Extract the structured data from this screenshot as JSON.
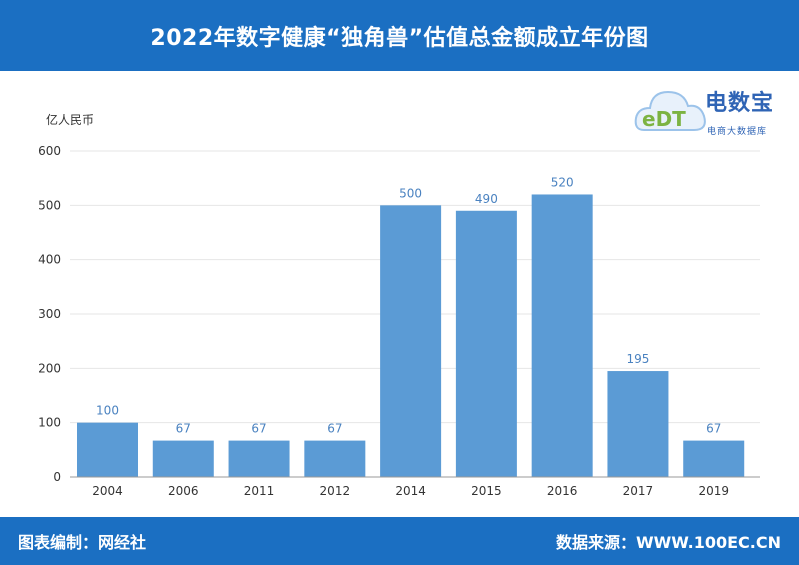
{
  "header": {
    "title": "2022年数字健康“独角兽”估值总金额成立年份图"
  },
  "footer": {
    "left": "图表编制：网经社",
    "right": "数据来源：WWW.100EC.CN"
  },
  "logo": {
    "badge": "eDT",
    "name": "电数宝",
    "sub": "电商大数据库",
    "icon": "cloud-logo-icon"
  },
  "colors": {
    "header_bg": "#1b6fc2",
    "bar": "#5b9bd5",
    "data_label": "#4a82c0"
  },
  "chart_data": {
    "type": "bar",
    "ylabel": "亿人民币",
    "categories": [
      "2004",
      "2006",
      "2011",
      "2012",
      "2014",
      "2015",
      "2016",
      "2017",
      "2019"
    ],
    "values": [
      100,
      67,
      67,
      67,
      500,
      490,
      520,
      195,
      67
    ],
    "ylim": [
      0,
      600
    ],
    "yticks": [
      "0",
      "100",
      "200",
      "300",
      "400",
      "500",
      "600"
    ],
    "grid": true
  }
}
